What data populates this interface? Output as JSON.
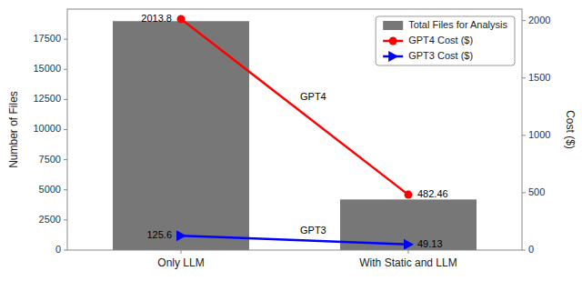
{
  "chart_data": {
    "type": "bar",
    "categories": [
      "Only LLM",
      "With Static and LLM"
    ],
    "series": [
      {
        "name": "Total Files for Analysis",
        "type": "bar",
        "color": "#777777",
        "values": [
          19000,
          4200
        ]
      },
      {
        "name": "GPT4 Cost ($)",
        "type": "line",
        "axis": "y2",
        "color": "red",
        "marker": "circle",
        "data_labels": true,
        "values": [
          2013.8,
          482.46
        ]
      },
      {
        "name": "GPT3 Cost ($)",
        "type": "line",
        "axis": "y2",
        "color": "blue",
        "marker": "triangle-right",
        "data_labels": true,
        "values": [
          125.6,
          49.13
        ]
      }
    ],
    "ylabel": "Number of Files",
    "y2label": "Cost ($)",
    "ylim": [
      0,
      20000
    ],
    "yticks": [
      0,
      2500,
      5000,
      7500,
      10000,
      12500,
      15000,
      17500
    ],
    "y2lim": [
      0,
      2100
    ],
    "y2ticks": [
      0,
      500,
      1000,
      1500,
      2000
    ],
    "annotations": [
      {
        "text": "GPT4"
      },
      {
        "text": "GPT3"
      }
    ],
    "legend": "upper right",
    "grid": false
  }
}
